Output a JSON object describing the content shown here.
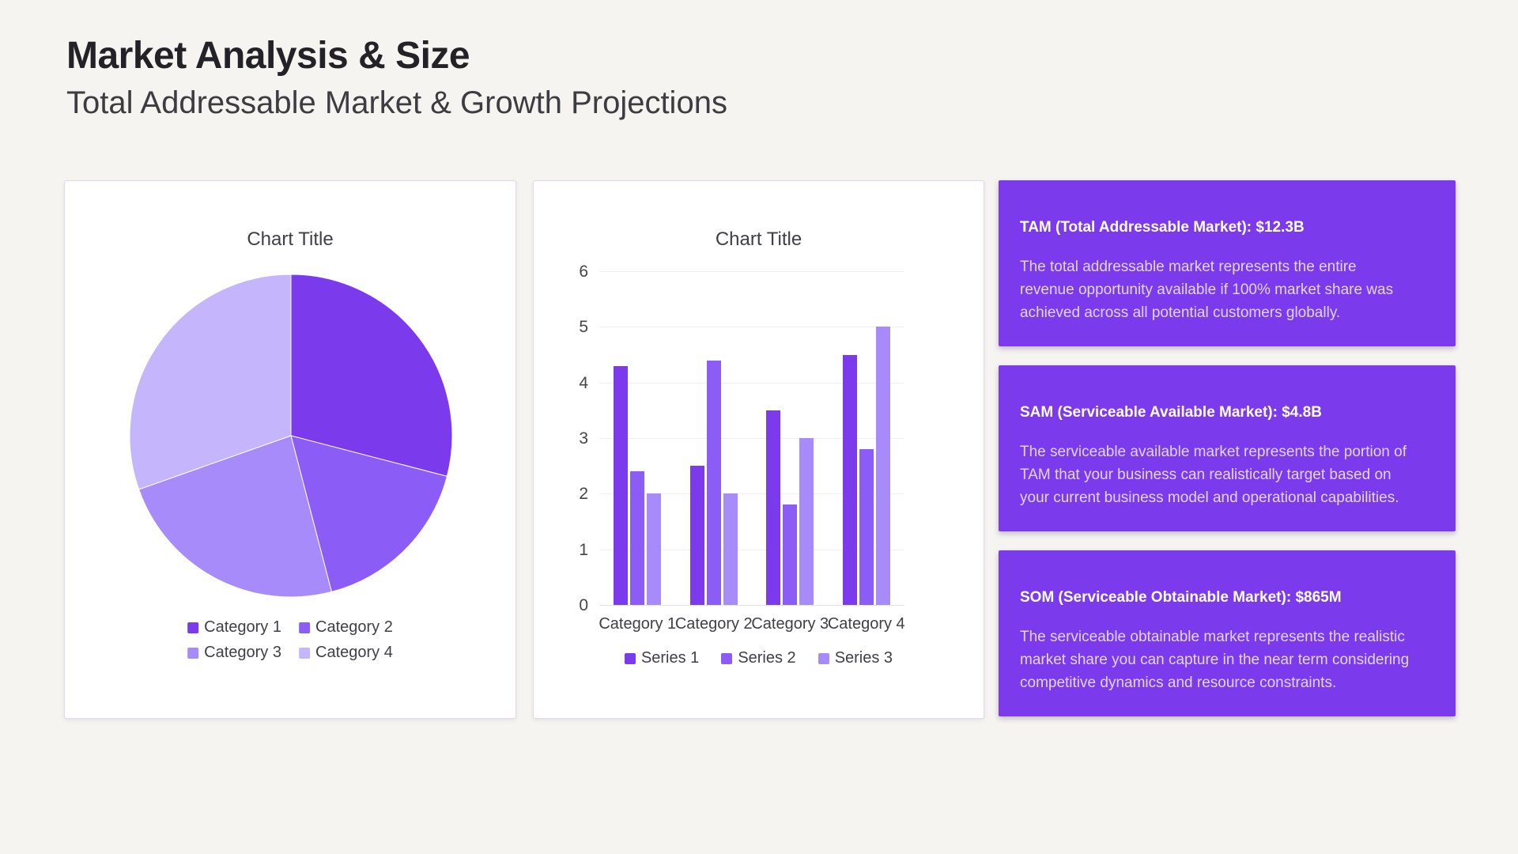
{
  "page": {
    "title": "Market Analysis & Size",
    "subtitle": "Total Addressable Market & Growth Projections",
    "background_color": "#F5F4F1",
    "accent_color": "#7C3AED"
  },
  "chart_data": [
    {
      "type": "pie",
      "title": "Chart Title",
      "categories": [
        "Category 1",
        "Category 2",
        "Category 3",
        "Category 4"
      ],
      "values": [
        4.3,
        2.5,
        3.5,
        4.5
      ],
      "colors": [
        "#7C3AED",
        "#8B5CF6",
        "#A78BFA",
        "#C4B5FD"
      ],
      "legend_position": "bottom",
      "start_angle_deg": 0,
      "direction": "clockwise"
    },
    {
      "type": "bar",
      "title": "Chart Title",
      "categories": [
        "Category 1",
        "Category 2",
        "Category 3",
        "Category 4"
      ],
      "series": [
        {
          "name": "Series 1",
          "color": "#7C3AED",
          "values": [
            4.3,
            2.5,
            3.5,
            4.5
          ]
        },
        {
          "name": "Series 2",
          "color": "#8B5CF6",
          "values": [
            2.4,
            4.4,
            1.8,
            2.8
          ]
        },
        {
          "name": "Series 3",
          "color": "#A78BFA",
          "values": [
            2.0,
            2.0,
            3.0,
            5.0
          ]
        }
      ],
      "ylim": [
        0,
        6
      ],
      "yticks": [
        0,
        1,
        2,
        3,
        4,
        5,
        6
      ],
      "grid": true,
      "legend_position": "bottom"
    }
  ],
  "cards": [
    {
      "title": "TAM (Total Addressable Market): $12.3B",
      "body": "The total addressable market represents the entire revenue opportunity available if 100% market share was achieved across all potential customers globally."
    },
    {
      "title": "SAM (Serviceable Available Market): $4.8B",
      "body": "The serviceable available market represents the portion of TAM that your business can realistically target based on your current business model and operational capabilities."
    },
    {
      "title": "SOM (Serviceable Obtainable Market): $865M",
      "body": "The serviceable obtainable market represents the realistic market share you can capture in the near term considering competitive dynamics and resource constraints."
    }
  ]
}
